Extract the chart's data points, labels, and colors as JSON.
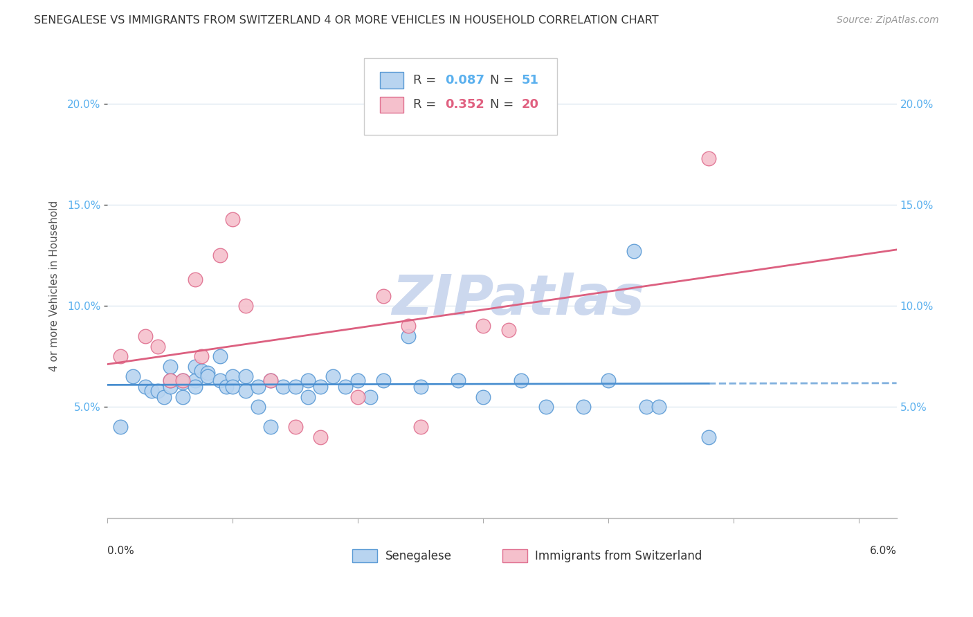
{
  "title": "SENEGALESE VS IMMIGRANTS FROM SWITZERLAND 4 OR MORE VEHICLES IN HOUSEHOLD CORRELATION CHART",
  "source": "Source: ZipAtlas.com",
  "ylabel": "4 or more Vehicles in Household",
  "ytick_labels": [
    "5.0%",
    "10.0%",
    "15.0%",
    "20.0%"
  ],
  "ytick_values": [
    0.05,
    0.1,
    0.15,
    0.2
  ],
  "xlim": [
    0.0,
    0.063
  ],
  "ylim": [
    -0.005,
    0.225
  ],
  "legend_label1": "Senegalese",
  "legend_label2": "Immigrants from Switzerland",
  "R1": 0.087,
  "N1": 51,
  "R2": 0.352,
  "N2": 20,
  "color_blue_fill": "#b8d4f0",
  "color_blue_edge": "#5a9ad5",
  "color_blue_line": "#4a8fd0",
  "color_pink_fill": "#f5c0cc",
  "color_pink_edge": "#e07090",
  "color_pink_line": "#dc6080",
  "color_blue_text": "#5ab0ee",
  "color_pink_text": "#e06080",
  "watermark_color": "#ccd8ee",
  "background_color": "#ffffff",
  "grid_color": "#dde8f0",
  "blue_x": [
    0.001,
    0.002,
    0.003,
    0.0035,
    0.004,
    0.0045,
    0.005,
    0.005,
    0.005,
    0.006,
    0.006,
    0.006,
    0.007,
    0.007,
    0.007,
    0.0075,
    0.008,
    0.008,
    0.009,
    0.009,
    0.0095,
    0.01,
    0.01,
    0.011,
    0.011,
    0.012,
    0.012,
    0.013,
    0.013,
    0.014,
    0.015,
    0.016,
    0.016,
    0.017,
    0.018,
    0.019,
    0.02,
    0.021,
    0.022,
    0.024,
    0.025,
    0.028,
    0.03,
    0.033,
    0.035,
    0.038,
    0.04,
    0.042,
    0.043,
    0.044,
    0.048
  ],
  "blue_y": [
    0.04,
    0.065,
    0.06,
    0.058,
    0.058,
    0.055,
    0.06,
    0.063,
    0.07,
    0.055,
    0.063,
    0.062,
    0.063,
    0.07,
    0.06,
    0.068,
    0.067,
    0.065,
    0.063,
    0.075,
    0.06,
    0.065,
    0.06,
    0.065,
    0.058,
    0.06,
    0.05,
    0.063,
    0.04,
    0.06,
    0.06,
    0.063,
    0.055,
    0.06,
    0.065,
    0.06,
    0.063,
    0.055,
    0.063,
    0.085,
    0.06,
    0.063,
    0.055,
    0.063,
    0.05,
    0.05,
    0.063,
    0.127,
    0.05,
    0.05,
    0.035
  ],
  "pink_x": [
    0.001,
    0.003,
    0.004,
    0.005,
    0.006,
    0.007,
    0.0075,
    0.009,
    0.01,
    0.011,
    0.013,
    0.015,
    0.017,
    0.02,
    0.022,
    0.024,
    0.025,
    0.03,
    0.032,
    0.048
  ],
  "pink_y": [
    0.075,
    0.085,
    0.08,
    0.063,
    0.063,
    0.113,
    0.075,
    0.125,
    0.143,
    0.1,
    0.063,
    0.04,
    0.035,
    0.055,
    0.105,
    0.09,
    0.04,
    0.09,
    0.088,
    0.173
  ]
}
